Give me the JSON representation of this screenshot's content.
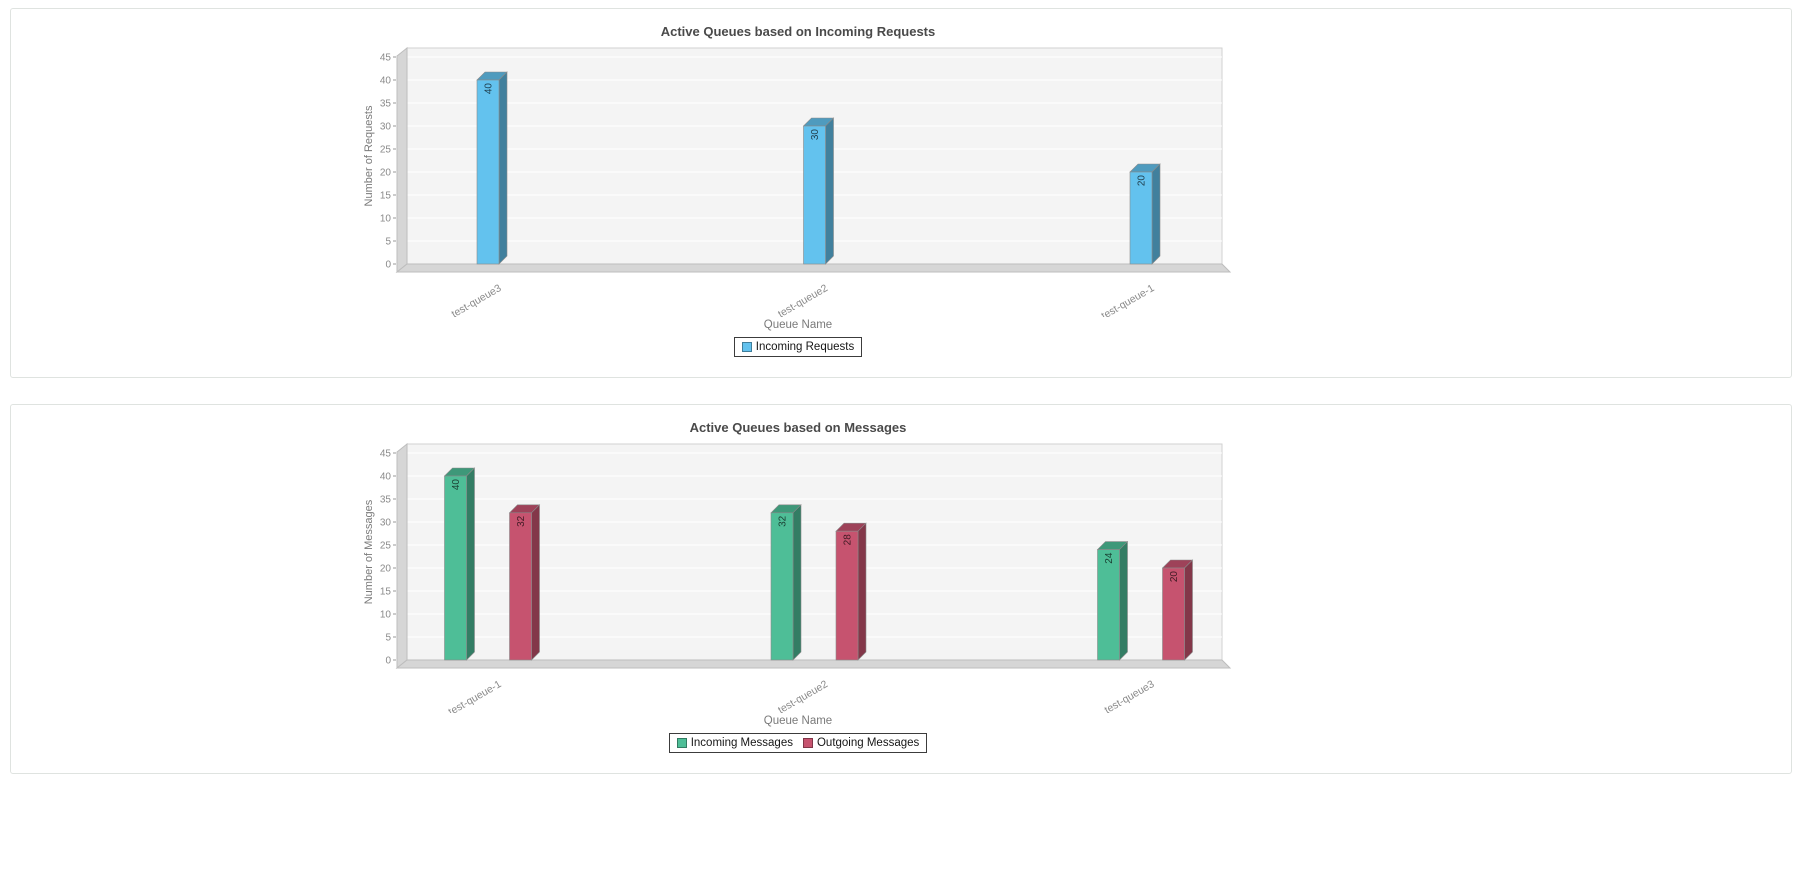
{
  "page": {
    "background": "#ffffff",
    "panel_border_color": "#dfe3e0"
  },
  "chart_data": [
    {
      "type": "bar",
      "style": "3d",
      "title": "Active Queues based on Incoming Requests",
      "xlabel": "Queue Name",
      "ylabel": "Number of Requests",
      "ylim": [
        0,
        45
      ],
      "ytick_step": 5,
      "grid": true,
      "legend_position": "bottom",
      "categories": [
        "test-queue3",
        "test-queue2",
        "test-queue-1"
      ],
      "series": [
        {
          "name": "Incoming Requests",
          "color": "#63C2EE",
          "values": [
            40,
            30,
            20
          ]
        }
      ]
    },
    {
      "type": "bar",
      "style": "3d",
      "title": "Active Queues based on Messages",
      "xlabel": "Queue Name",
      "ylabel": "Number of Messages",
      "ylim": [
        0,
        45
      ],
      "ytick_step": 5,
      "grid": true,
      "legend_position": "bottom",
      "categories": [
        "test-queue-1",
        "test-queue2",
        "test-queue3"
      ],
      "series": [
        {
          "name": "Incoming Messages",
          "color": "#4EBE97",
          "values": [
            40,
            32,
            24
          ]
        },
        {
          "name": "Outgoing Messages",
          "color": "#C6536F",
          "values": [
            32,
            28,
            20
          ]
        }
      ]
    }
  ]
}
